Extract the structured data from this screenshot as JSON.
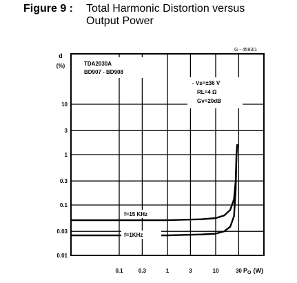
{
  "caption": {
    "label": "Figure 9 :",
    "line1": "Total Harmonic Distortion versus",
    "line2": "Output Power"
  },
  "chart_data": {
    "type": "line",
    "reference": "G - 4593/1",
    "ylabel_symbol": "d",
    "ylabel_unit": "(%)",
    "xlabel": "P",
    "xlabel_sub": "O",
    "xlabel_unit": "(W)",
    "x_scale": "log",
    "y_scale": "log",
    "xlim": [
      0.01,
      100
    ],
    "ylim": [
      0.01,
      100
    ],
    "x_ticks": [
      {
        "value": 0.1,
        "label": "0.1"
      },
      {
        "value": 0.3,
        "label": "0.3"
      },
      {
        "value": 1,
        "label": "1"
      },
      {
        "value": 3,
        "label": "3"
      },
      {
        "value": 10,
        "label": "10"
      },
      {
        "value": 30,
        "label": "30"
      }
    ],
    "y_ticks": [
      {
        "value": 0.01,
        "label": "0.01"
      },
      {
        "value": 0.03,
        "label": "0.03"
      },
      {
        "value": 0.1,
        "label": "0.1"
      },
      {
        "value": 0.3,
        "label": "0.3"
      },
      {
        "value": 1,
        "label": "1"
      },
      {
        "value": 3,
        "label": "3"
      },
      {
        "value": 10,
        "label": "10"
      }
    ],
    "devices": [
      "TDA2030A",
      "BD907 - BD908"
    ],
    "conditions": [
      "- Vs=±36 V",
      "RL=4 Ω",
      "Gv=20dB"
    ],
    "grid": true,
    "series": [
      {
        "name": "f=15 KHz",
        "points": [
          [
            0.01,
            0.05
          ],
          [
            0.1,
            0.05
          ],
          [
            1,
            0.05
          ],
          [
            5,
            0.052
          ],
          [
            10,
            0.055
          ],
          [
            15,
            0.062
          ],
          [
            20,
            0.08
          ],
          [
            24,
            0.13
          ],
          [
            26,
            0.3
          ],
          [
            27,
            1.0
          ],
          [
            28,
            1.6
          ]
        ]
      },
      {
        "name": "f=1KHz",
        "points": [
          [
            0.01,
            0.025
          ],
          [
            0.1,
            0.025
          ],
          [
            1,
            0.025
          ],
          [
            5,
            0.026
          ],
          [
            10,
            0.027
          ],
          [
            15,
            0.03
          ],
          [
            20,
            0.037
          ],
          [
            24,
            0.06
          ],
          [
            26,
            0.2
          ],
          [
            27,
            1.0
          ],
          [
            28,
            1.6
          ]
        ]
      }
    ]
  }
}
